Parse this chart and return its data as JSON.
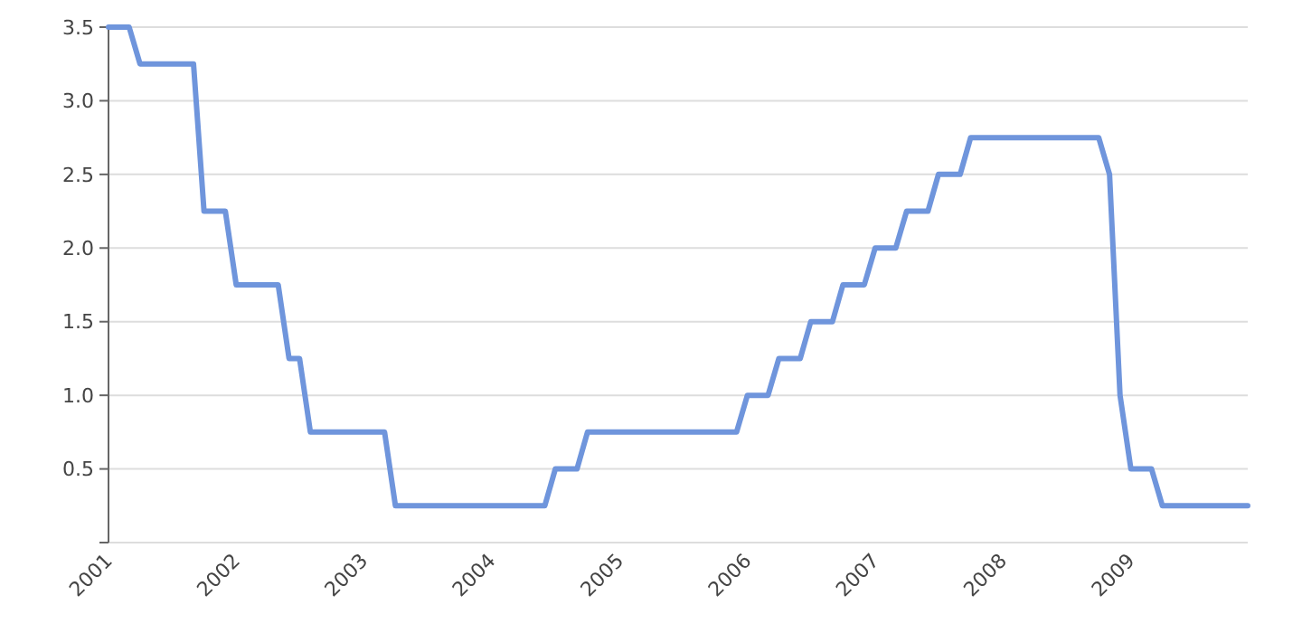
{
  "chart_data": {
    "type": "line",
    "x": [
      "2001-01",
      "2001-03",
      "2001-04",
      "2001-09",
      "2001-10",
      "2001-12",
      "2002-01",
      "2002-05",
      "2002-06",
      "2002-07",
      "2002-08",
      "2003-03",
      "2003-04",
      "2004-06",
      "2004-07",
      "2004-09",
      "2004-10",
      "2005-12",
      "2006-01",
      "2006-03",
      "2006-04",
      "2006-06",
      "2006-07",
      "2006-09",
      "2006-10",
      "2006-12",
      "2007-01",
      "2007-03",
      "2007-04",
      "2007-06",
      "2007-07",
      "2007-09",
      "2007-10",
      "2008-10",
      "2008-11",
      "2008-12",
      "2009-01",
      "2009-03",
      "2009-04",
      "2009-12"
    ],
    "series": [
      {
        "color": "#6f95dc",
        "values": [
          3.5,
          3.5,
          3.25,
          3.25,
          2.25,
          2.25,
          1.75,
          1.75,
          1.25,
          1.25,
          0.75,
          0.75,
          0.25,
          0.25,
          0.5,
          0.5,
          0.75,
          0.75,
          1.0,
          1.0,
          1.25,
          1.25,
          1.5,
          1.5,
          1.75,
          1.75,
          2.0,
          2.0,
          2.25,
          2.25,
          2.5,
          2.5,
          2.75,
          2.75,
          2.5,
          1.0,
          0.5,
          0.5,
          0.25,
          0.25
        ]
      }
    ],
    "xlim": [
      "2001-01",
      "2009-12"
    ],
    "xticks": [
      "2001",
      "2002",
      "2003",
      "2004",
      "2005",
      "2006",
      "2007",
      "2008",
      "2009"
    ],
    "ylim": [
      0,
      3.5
    ],
    "yticks": [
      {
        "value": 0,
        "label": null
      },
      0.5,
      {
        "value": 1,
        "label": "1.0"
      },
      1.5,
      {
        "value": 2,
        "label": "2.0"
      },
      2.5,
      {
        "value": 3,
        "label": "3.0"
      },
      3.5
    ],
    "grid": "y",
    "marker": "none",
    "line_style": "solid"
  }
}
